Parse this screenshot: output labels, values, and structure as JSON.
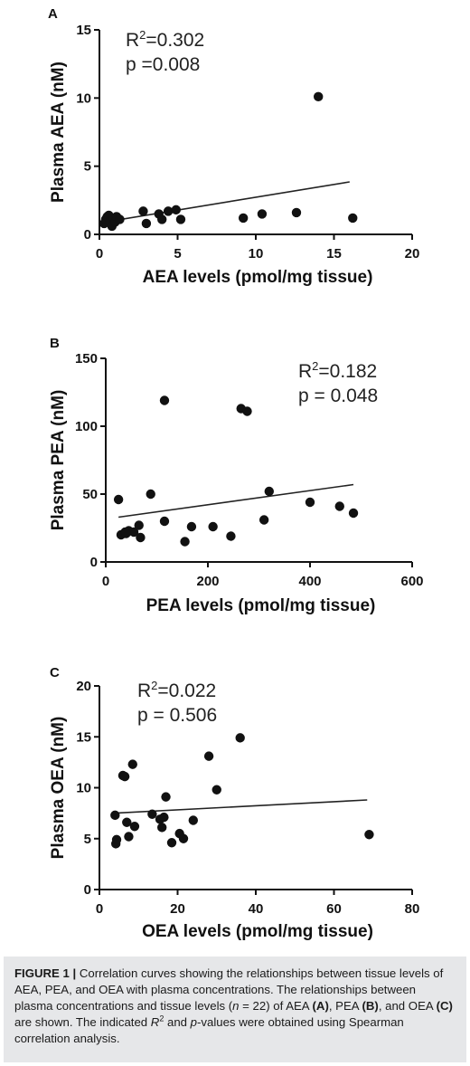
{
  "chart_data": [
    {
      "panel": "A",
      "type": "scatter",
      "xlabel": "AEA levels (pmol/mg tissue)",
      "ylabel": "Plasma AEA (nM)",
      "xlim": [
        0,
        20
      ],
      "ylim": [
        0,
        15
      ],
      "xticks": [
        0,
        5,
        10,
        15,
        20
      ],
      "yticks": [
        0,
        5,
        10,
        15
      ],
      "r2_label": "R",
      "r2_value": "=0.302",
      "p_text": "p =0.008",
      "trend_line": [
        [
          0.3,
          0.9
        ],
        [
          16.0,
          3.85
        ]
      ],
      "points": [
        [
          0.3,
          0.8
        ],
        [
          0.4,
          1.1
        ],
        [
          0.5,
          1.3
        ],
        [
          0.6,
          1.4
        ],
        [
          0.7,
          1.0
        ],
        [
          0.8,
          0.6
        ],
        [
          0.9,
          1.2
        ],
        [
          1.0,
          0.9
        ],
        [
          1.1,
          1.3
        ],
        [
          1.3,
          1.1
        ],
        [
          2.8,
          1.7
        ],
        [
          3.0,
          0.8
        ],
        [
          3.8,
          1.5
        ],
        [
          4.0,
          1.1
        ],
        [
          4.4,
          1.7
        ],
        [
          4.9,
          1.8
        ],
        [
          5.2,
          1.1
        ],
        [
          9.2,
          1.2
        ],
        [
          10.4,
          1.5
        ],
        [
          12.6,
          1.6
        ],
        [
          14.0,
          10.1
        ],
        [
          16.2,
          1.2
        ]
      ]
    },
    {
      "panel": "B",
      "type": "scatter",
      "xlabel": "PEA levels (pmol/mg tissue)",
      "ylabel": "Plasma PEA (nM)",
      "xlim": [
        0,
        600
      ],
      "ylim": [
        0,
        150
      ],
      "xticks": [
        0,
        200,
        400,
        600
      ],
      "yticks": [
        0,
        50,
        100,
        150
      ],
      "r2_label": "R",
      "r2_value": "=0.182",
      "p_text": "p = 0.048",
      "trend_line": [
        [
          25,
          33
        ],
        [
          485,
          57
        ]
      ],
      "points": [
        [
          25,
          46
        ],
        [
          30,
          20
        ],
        [
          38,
          22
        ],
        [
          45,
          23
        ],
        [
          55,
          22
        ],
        [
          65,
          27
        ],
        [
          68,
          18
        ],
        [
          88,
          50
        ],
        [
          115,
          30
        ],
        [
          115,
          119
        ],
        [
          155,
          15
        ],
        [
          168,
          26
        ],
        [
          210,
          26
        ],
        [
          245,
          19
        ],
        [
          265,
          113
        ],
        [
          277,
          111
        ],
        [
          310,
          31
        ],
        [
          320,
          52
        ],
        [
          400,
          44
        ],
        [
          458,
          41
        ],
        [
          485,
          36
        ],
        [
          40,
          21
        ]
      ]
    },
    {
      "panel": "C",
      "type": "scatter",
      "xlabel": "OEA levels (pmol/mg tissue)",
      "ylabel": "Plasma OEA (nM)",
      "xlim": [
        0,
        80
      ],
      "ylim": [
        0,
        20
      ],
      "xticks": [
        0,
        20,
        40,
        60,
        80
      ],
      "yticks": [
        0,
        5,
        10,
        15,
        20
      ],
      "r2_label": "R",
      "r2_value": "=0.022",
      "p_text": "p = 0.506",
      "trend_line": [
        [
          3.5,
          7.5
        ],
        [
          68.5,
          8.8
        ]
      ],
      "points": [
        [
          4,
          7.3
        ],
        [
          4.2,
          4.5
        ],
        [
          4.4,
          4.9
        ],
        [
          6,
          11.2
        ],
        [
          6.5,
          11.1
        ],
        [
          7,
          6.6
        ],
        [
          7.5,
          5.2
        ],
        [
          8.5,
          12.3
        ],
        [
          9,
          6.2
        ],
        [
          13.5,
          7.4
        ],
        [
          15.5,
          6.9
        ],
        [
          16,
          6.1
        ],
        [
          16.5,
          7.1
        ],
        [
          17,
          9.1
        ],
        [
          18.5,
          4.6
        ],
        [
          20.5,
          5.5
        ],
        [
          21.5,
          5.0
        ],
        [
          24,
          6.8
        ],
        [
          28,
          13.1
        ],
        [
          30,
          9.8
        ],
        [
          36,
          14.9
        ],
        [
          69,
          5.4
        ]
      ]
    }
  ],
  "caption": {
    "fig_label": "FIGURE 1 |",
    "seg1": " Correlation curves showing the relationships between tissue levels of AEA, PEA, and OEA with plasma concentrations. The relationships between plasma concentrations and tissue levels (",
    "n_var": "n",
    "seg2": " = 22) of AEA ",
    "ref_a": "(A)",
    "seg3": ", PEA ",
    "ref_b": "(B)",
    "seg4": ", and OEA ",
    "ref_c": "(C)",
    "seg5": " are shown. The indicated ",
    "r_var": "R",
    "r_sup": "2",
    "seg6": " and ",
    "p_var": "p",
    "seg7": "-values were obtained using Spearman correlation analysis."
  }
}
